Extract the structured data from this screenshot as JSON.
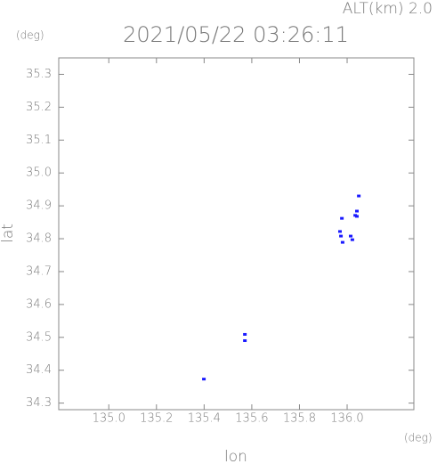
{
  "chart_data": {
    "type": "scatter",
    "title": "2021/05/22 03:26:11",
    "annotation": "ALT(km) 2.0",
    "y_unit": "(deg)",
    "x_unit": "(deg)",
    "x_label": "lon",
    "y_label": "lat",
    "xlim": [
      134.79,
      136.28
    ],
    "ylim": [
      34.28,
      35.35
    ],
    "xticks": [
      {
        "value": 135,
        "label": "135.0"
      },
      135.2,
      135.4,
      135.6,
      135.8,
      {
        "value": 136,
        "label": "136.0"
      }
    ],
    "yticks": [
      34.3,
      34.4,
      34.5,
      34.6,
      34.7,
      34.8,
      34.9,
      {
        "value": 35,
        "label": "35.0"
      },
      35.1,
      35.2,
      35.3
    ],
    "series": [
      {
        "color": "#1a1aff",
        "x": [
          136.049,
          136.041,
          136.041,
          136.034,
          135.978,
          135.97,
          135.974,
          135.981,
          136.015,
          136.022,
          135.571,
          135.571,
          135.399
        ],
        "values": [
          34.93,
          34.884,
          34.868,
          34.871,
          34.862,
          34.822,
          34.808,
          34.789,
          34.808,
          34.797,
          34.509,
          34.49,
          34.373
        ]
      }
    ]
  }
}
